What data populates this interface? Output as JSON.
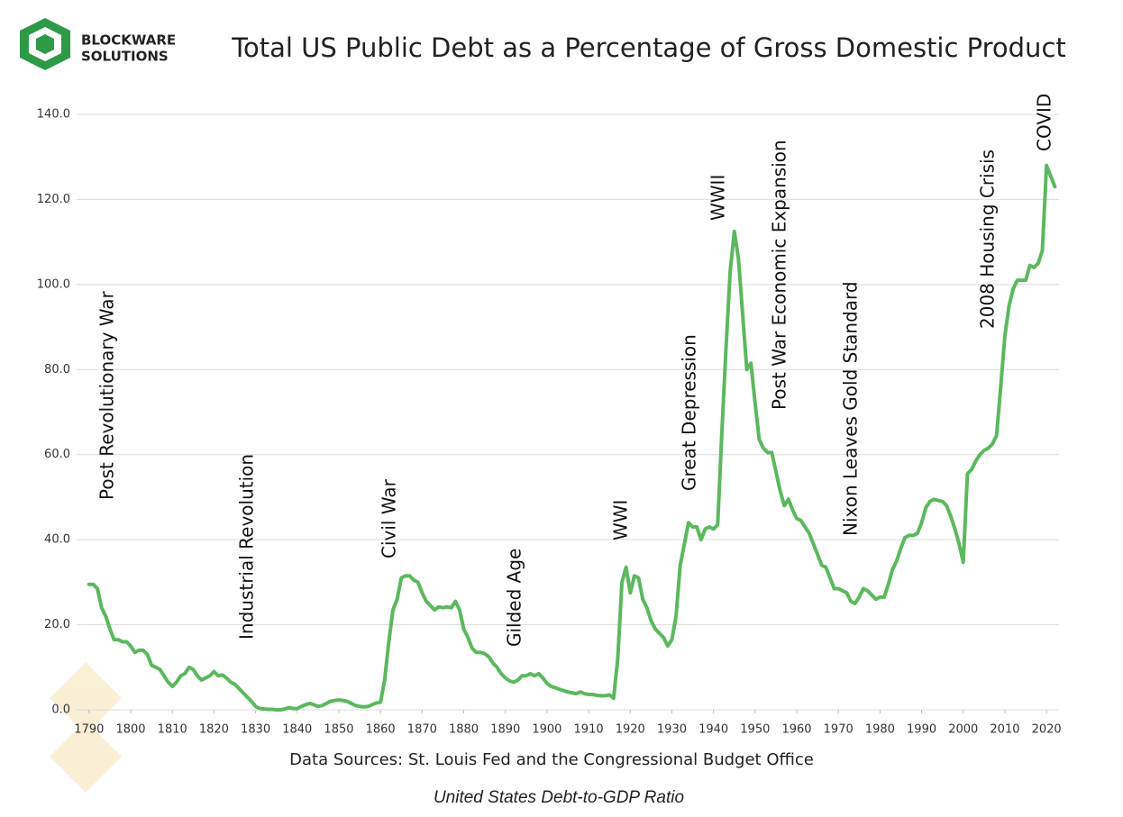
{
  "brand": [
    "BLOCKWARE",
    "SOLUTIONS"
  ],
  "chart_data": {
    "type": "line",
    "title": "Total US Public Debt as a Percentage of Gross Domestic Product",
    "source": "Data Sources: St. Louis Fed and the Congressional Budget Office",
    "caption": "United States Debt-to-GDP Ratio",
    "color": "#5cb85f",
    "grid": true,
    "xlim": [
      1787,
      2023
    ],
    "ylim": [
      0,
      140
    ],
    "xticks": [
      1790,
      1800,
      1810,
      1820,
      1830,
      1840,
      1850,
      1860,
      1870,
      1880,
      1890,
      1900,
      1910,
      1920,
      1930,
      1940,
      1950,
      1960,
      1970,
      1980,
      1990,
      2000,
      2010,
      2020
    ],
    "yticks": [
      {
        "value": 0,
        "label": "0.0"
      },
      {
        "value": 20,
        "label": "20.0"
      },
      {
        "value": 40,
        "label": "40.0"
      },
      {
        "value": 60,
        "label": "60.0"
      },
      {
        "value": 80,
        "label": "80.0"
      },
      {
        "value": 100,
        "label": "100.0"
      },
      {
        "value": 120,
        "label": "120.0"
      },
      {
        "value": 140,
        "label": "140.0"
      }
    ],
    "annotations": [
      "Post Revolutionary War",
      "Industrial Revolution",
      "Civil War",
      "Gilded Age",
      "WWI",
      "Great Depression",
      "WWII",
      "Post War Economic Expansion",
      "Nixon Leaves Gold Standard",
      "2008 Housing Crisis",
      "COVID"
    ],
    "x": [
      1790,
      1791,
      1792,
      1793,
      1794,
      1795,
      1796,
      1797,
      1798,
      1799,
      1800,
      1801,
      1802,
      1803,
      1804,
      1805,
      1806,
      1807,
      1808,
      1809,
      1810,
      1811,
      1812,
      1813,
      1814,
      1815,
      1816,
      1817,
      1818,
      1819,
      1820,
      1821,
      1822,
      1823,
      1824,
      1825,
      1826,
      1827,
      1828,
      1829,
      1830,
      1831,
      1832,
      1833,
      1834,
      1835,
      1836,
      1837,
      1838,
      1839,
      1840,
      1841,
      1842,
      1843,
      1844,
      1845,
      1846,
      1847,
      1848,
      1849,
      1850,
      1851,
      1852,
      1853,
      1854,
      1855,
      1856,
      1857,
      1858,
      1859,
      1860,
      1861,
      1862,
      1863,
      1864,
      1865,
      1866,
      1867,
      1868,
      1869,
      1870,
      1871,
      1872,
      1873,
      1874,
      1875,
      1876,
      1877,
      1878,
      1879,
      1880,
      1881,
      1882,
      1883,
      1884,
      1885,
      1886,
      1887,
      1888,
      1889,
      1890,
      1891,
      1892,
      1893,
      1894,
      1895,
      1896,
      1897,
      1898,
      1899,
      1900,
      1901,
      1902,
      1903,
      1904,
      1905,
      1906,
      1907,
      1908,
      1909,
      1910,
      1911,
      1912,
      1913,
      1914,
      1915,
      1916,
      1917,
      1918,
      1919,
      1920,
      1921,
      1922,
      1923,
      1924,
      1925,
      1926,
      1927,
      1928,
      1929,
      1930,
      1931,
      1932,
      1933,
      1934,
      1935,
      1936,
      1937,
      1938,
      1939,
      1940,
      1941,
      1942,
      1943,
      1944,
      1945,
      1946,
      1947,
      1948,
      1949,
      1950,
      1951,
      1952,
      1953,
      1954,
      1955,
      1956,
      1957,
      1958,
      1959,
      1960,
      1961,
      1962,
      1963,
      1964,
      1965,
      1966,
      1967,
      1968,
      1969,
      1970,
      1971,
      1972,
      1973,
      1974,
      1975,
      1976,
      1977,
      1978,
      1979,
      1980,
      1981,
      1982,
      1983,
      1984,
      1985,
      1986,
      1987,
      1988,
      1989,
      1990,
      1991,
      1992,
      1993,
      1994,
      1995,
      1996,
      1997,
      1998,
      1999,
      2000,
      2001,
      2002,
      2003,
      2004,
      2005,
      2006,
      2007,
      2008,
      2009,
      2010,
      2011,
      2012,
      2013,
      2014,
      2015,
      2016,
      2017,
      2018,
      2019,
      2020,
      2021,
      2022
    ],
    "values": [
      29.5,
      29.5,
      28.5,
      24,
      22,
      19,
      16.5,
      16.5,
      16,
      16,
      15,
      13.5,
      14,
      14,
      13,
      10.5,
      10,
      9.5,
      8,
      6.5,
      5.5,
      6.5,
      8,
      8.5,
      10,
      9.5,
      8,
      7,
      7.5,
      8,
      9,
      8,
      8.2,
      7.5,
      6.5,
      6,
      5,
      4,
      3,
      2,
      0.8,
      0.3,
      0.2,
      0.1,
      0.1,
      0,
      0,
      0.2,
      0.5,
      0.3,
      0.3,
      0.8,
      1.2,
      1.5,
      1.2,
      0.8,
      1,
      1.5,
      2,
      2.2,
      2.3,
      2.2,
      2,
      1.5,
      1,
      0.8,
      0.7,
      0.8,
      1.2,
      1.6,
      1.8,
      7,
      16,
      23.5,
      26,
      31,
      31.5,
      31.5,
      30.5,
      30,
      27.5,
      25.5,
      24.5,
      23.5,
      24.2,
      24,
      24.2,
      24,
      25.5,
      23.5,
      19,
      17,
      14.5,
      13.5,
      13.5,
      13.2,
      12.5,
      11,
      10,
      8.5,
      7.5,
      6.8,
      6.5,
      7,
      8,
      8,
      8.5,
      8,
      8.5,
      7.5,
      6.2,
      5.5,
      5.2,
      4.8,
      4.5,
      4.2,
      4,
      3.8,
      4.2,
      3.8,
      3.6,
      3.6,
      3.4,
      3.3,
      3.3,
      3.5,
      2.7,
      12,
      30,
      33.5,
      27.5,
      31.5,
      31,
      26,
      24,
      21,
      19,
      18,
      17,
      15,
      16.5,
      22,
      34,
      39,
      44,
      43,
      43,
      40,
      42.5,
      43,
      42.5,
      43.5,
      65,
      85,
      103,
      112.5,
      106,
      93,
      80,
      81.5,
      72,
      63.5,
      61.5,
      60.5,
      60.5,
      56,
      51.5,
      48,
      49.5,
      47,
      45,
      44.5,
      43,
      41.5,
      39,
      36.5,
      34,
      33.5,
      31,
      28.5,
      28.5,
      28,
      27.5,
      25.5,
      25,
      26.5,
      28.5,
      28,
      27,
      26,
      26.5,
      26.5,
      29.5,
      33,
      35,
      38,
      40.5,
      41,
      41,
      41.5,
      44,
      47.5,
      49,
      49.5,
      49.2,
      49,
      48,
      45.5,
      42.5,
      39,
      34.7,
      55.5,
      56.5,
      58.5,
      60,
      61,
      61.5,
      62.5,
      64.5,
      76,
      88,
      95,
      99,
      101,
      101,
      101,
      104.5,
      104,
      105,
      108,
      128,
      125.5,
      123
    ]
  }
}
